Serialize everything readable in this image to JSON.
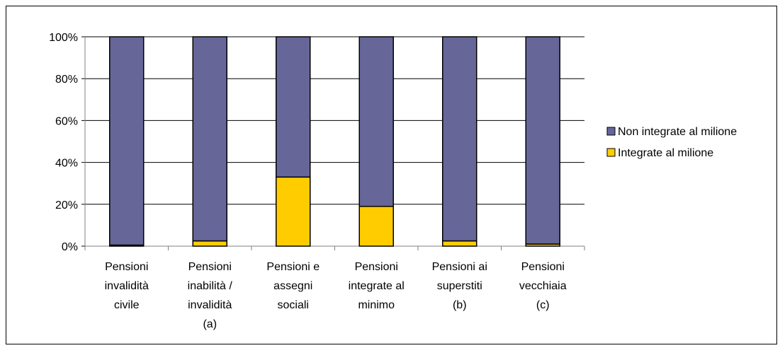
{
  "chart_data": {
    "type": "stacked_bar_100",
    "categories": [
      "Pensioni\ninvalidità\ncivile",
      "Pensioni\ninabilità /\ninvalidità\n(a)",
      "Pensioni e\nassegni\nsociali",
      "Pensioni\nintegrate al\nminimo",
      "Pensioni ai\nsuperstiti\n(b)",
      "Pensioni\nvecchiaia\n(c)"
    ],
    "series": [
      {
        "name": "Integrate al milione",
        "color": "#ffcc00",
        "values": [
          0.5,
          2.5,
          33,
          19,
          2.5,
          1
        ]
      },
      {
        "name": "Non integrate al milione",
        "color": "#666699",
        "values": [
          99.5,
          97.5,
          67,
          81,
          97.5,
          99
        ]
      }
    ],
    "ylim": [
      0,
      100
    ],
    "yticks": [
      {
        "value": 0,
        "label": "0%"
      },
      {
        "value": 20,
        "label": "20%"
      },
      {
        "value": 40,
        "label": "40%"
      },
      {
        "value": 60,
        "label": "60%"
      },
      {
        "value": 80,
        "label": "80%"
      },
      {
        "value": 100,
        "label": "100%"
      }
    ],
    "grid": true,
    "legend": "right"
  }
}
